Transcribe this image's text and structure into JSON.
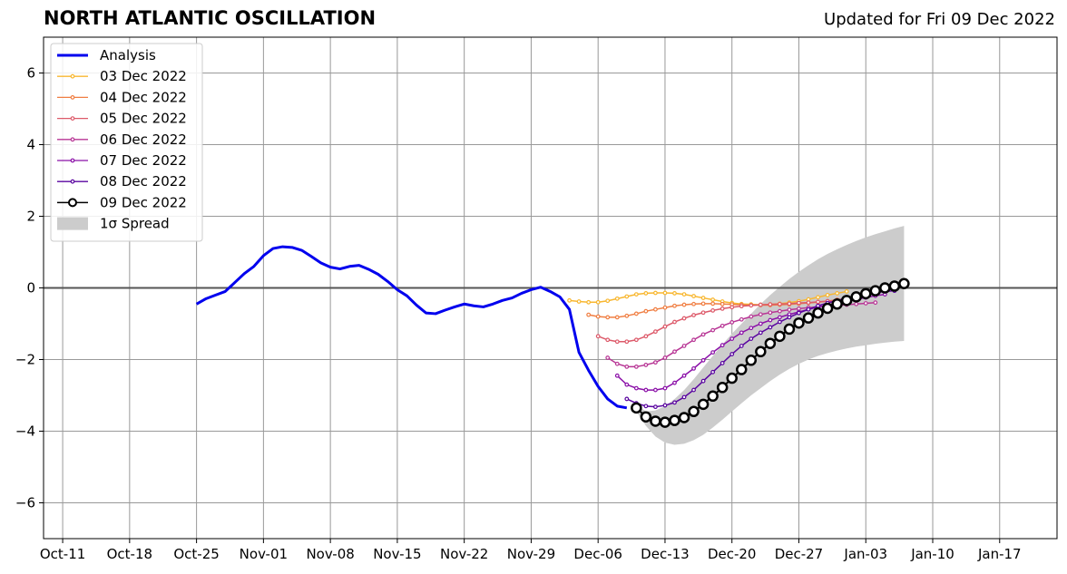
{
  "header": {
    "title": "NORTH ATLANTIC OSCILLATION",
    "updated": "Updated for Fri 09 Dec 2022"
  },
  "chart_data": {
    "type": "line",
    "title": "NORTH ATLANTIC OSCILLATION",
    "xlabel": "",
    "ylabel": "",
    "xlim": [
      "2022-10-09",
      "2023-01-23"
    ],
    "ylim": [
      -7,
      7
    ],
    "grid": true,
    "legend_position": "top-left",
    "x_ticks": [
      "Oct-11",
      "Oct-18",
      "Oct-25",
      "Nov-01",
      "Nov-08",
      "Nov-15",
      "Nov-22",
      "Nov-29",
      "Dec-06",
      "Dec-13",
      "Dec-20",
      "Dec-27",
      "Jan-03",
      "Jan-10",
      "Jan-17"
    ],
    "y_ticks": [
      -6,
      -4,
      -2,
      0,
      2,
      4,
      6
    ],
    "y_tick_labels": [
      "−6",
      "−4",
      "−2",
      "0",
      "2",
      "4",
      "6"
    ],
    "legend": [
      "Analysis",
      "03 Dec 2022",
      "04 Dec 2022",
      "05 Dec 2022",
      "06 Dec 2022",
      "07 Dec 2022",
      "08 Dec 2022",
      "09 Dec 2022",
      "1σ Spread"
    ],
    "colors": {
      "analysis": "#0000ee",
      "spread": "#cccccc",
      "grid": "#999999",
      "zero_line": "#555555",
      "forecast_09": "#000000"
    },
    "series": [
      {
        "name": "Analysis",
        "color": "#0000ee",
        "style": "thick-line",
        "x": [
          "2022-10-25",
          "2022-10-26",
          "2022-10-27",
          "2022-10-28",
          "2022-10-29",
          "2022-10-30",
          "2022-10-31",
          "2022-11-01",
          "2022-11-02",
          "2022-11-03",
          "2022-11-04",
          "2022-11-05",
          "2022-11-06",
          "2022-11-07",
          "2022-11-08",
          "2022-11-09",
          "2022-11-10",
          "2022-11-11",
          "2022-11-12",
          "2022-11-13",
          "2022-11-14",
          "2022-11-15",
          "2022-11-16",
          "2022-11-17",
          "2022-11-18",
          "2022-11-19",
          "2022-11-20",
          "2022-11-21",
          "2022-11-22",
          "2022-11-23",
          "2022-11-24",
          "2022-11-25",
          "2022-11-26",
          "2022-11-27",
          "2022-11-28",
          "2022-11-29",
          "2022-11-30",
          "2022-12-01",
          "2022-12-02",
          "2022-12-03",
          "2022-12-04",
          "2022-12-05",
          "2022-12-06",
          "2022-12-07",
          "2022-12-08",
          "2022-12-09"
        ],
        "y": [
          -0.45,
          -0.3,
          -0.2,
          -0.1,
          0.15,
          0.4,
          0.6,
          0.9,
          1.1,
          1.15,
          1.13,
          1.05,
          0.88,
          0.7,
          0.58,
          0.53,
          0.6,
          0.63,
          0.52,
          0.38,
          0.18,
          -0.05,
          -0.22,
          -0.48,
          -0.7,
          -0.72,
          -0.62,
          -0.53,
          -0.45,
          -0.5,
          -0.53,
          -0.45,
          -0.35,
          -0.28,
          -0.15,
          -0.05,
          0.02,
          -0.1,
          -0.25,
          -0.6,
          -1.8,
          -2.3,
          -2.75,
          -3.1,
          -3.3,
          -3.35
        ]
      },
      {
        "name": "03 Dec 2022",
        "color": "#f8b730",
        "x": [
          "2022-12-03",
          "2022-12-04",
          "2022-12-05",
          "2022-12-06",
          "2022-12-07",
          "2022-12-08",
          "2022-12-09",
          "2022-12-10",
          "2022-12-11",
          "2022-12-12",
          "2022-12-13",
          "2022-12-14",
          "2022-12-15",
          "2022-12-16",
          "2022-12-17",
          "2022-12-18",
          "2022-12-19",
          "2022-12-20",
          "2022-12-21",
          "2022-12-22",
          "2022-12-23",
          "2022-12-24",
          "2022-12-25",
          "2022-12-26",
          "2022-12-27",
          "2022-12-28",
          "2022-12-29",
          "2022-12-30",
          "2022-12-31",
          "2023-01-01"
        ],
        "y": [
          -0.35,
          -0.38,
          -0.4,
          -0.4,
          -0.36,
          -0.3,
          -0.24,
          -0.18,
          -0.15,
          -0.14,
          -0.14,
          -0.15,
          -0.18,
          -0.23,
          -0.28,
          -0.33,
          -0.38,
          -0.42,
          -0.45,
          -0.46,
          -0.47,
          -0.46,
          -0.44,
          -0.41,
          -0.37,
          -0.32,
          -0.26,
          -0.2,
          -0.15,
          -0.1
        ]
      },
      {
        "name": "04 Dec 2022",
        "color": "#f07e42",
        "x": [
          "2022-12-05",
          "2022-12-06",
          "2022-12-07",
          "2022-12-08",
          "2022-12-09",
          "2022-12-10",
          "2022-12-11",
          "2022-12-12",
          "2022-12-13",
          "2022-12-14",
          "2022-12-15",
          "2022-12-16",
          "2022-12-17",
          "2022-12-18",
          "2022-12-19",
          "2022-12-20",
          "2022-12-21",
          "2022-12-22",
          "2022-12-23",
          "2022-12-24",
          "2022-12-25",
          "2022-12-26",
          "2022-12-27",
          "2022-12-28",
          "2022-12-29",
          "2022-12-30",
          "2022-12-31",
          "2023-01-01",
          "2023-01-02"
        ],
        "y": [
          -0.75,
          -0.8,
          -0.82,
          -0.82,
          -0.78,
          -0.72,
          -0.65,
          -0.6,
          -0.55,
          -0.5,
          -0.47,
          -0.45,
          -0.44,
          -0.44,
          -0.45,
          -0.46,
          -0.47,
          -0.48,
          -0.48,
          -0.48,
          -0.47,
          -0.46,
          -0.44,
          -0.42,
          -0.4,
          -0.37,
          -0.33,
          -0.3,
          -0.26
        ]
      },
      {
        "name": "05 Dec 2022",
        "color": "#dd5a6a",
        "x": [
          "2022-12-06",
          "2022-12-07",
          "2022-12-08",
          "2022-12-09",
          "2022-12-10",
          "2022-12-11",
          "2022-12-12",
          "2022-12-13",
          "2022-12-14",
          "2022-12-15",
          "2022-12-16",
          "2022-12-17",
          "2022-12-18",
          "2022-12-19",
          "2022-12-20",
          "2022-12-21",
          "2022-12-22",
          "2022-12-23",
          "2022-12-24",
          "2022-12-25",
          "2022-12-26",
          "2022-12-27",
          "2022-12-28",
          "2022-12-29",
          "2022-12-30",
          "2022-12-31",
          "2023-01-01",
          "2023-01-02",
          "2023-01-03"
        ],
        "y": [
          -1.35,
          -1.45,
          -1.5,
          -1.5,
          -1.45,
          -1.35,
          -1.22,
          -1.08,
          -0.95,
          -0.85,
          -0.76,
          -0.69,
          -0.63,
          -0.58,
          -0.54,
          -0.51,
          -0.49,
          -0.47,
          -0.46,
          -0.45,
          -0.44,
          -0.42,
          -0.41,
          -0.39,
          -0.37,
          -0.35,
          -0.32,
          -0.29,
          -0.26
        ]
      },
      {
        "name": "06 Dec 2022",
        "color": "#b83695",
        "x": [
          "2022-12-07",
          "2022-12-08",
          "2022-12-09",
          "2022-12-10",
          "2022-12-11",
          "2022-12-12",
          "2022-12-13",
          "2022-12-14",
          "2022-12-15",
          "2022-12-16",
          "2022-12-17",
          "2022-12-18",
          "2022-12-19",
          "2022-12-20",
          "2022-12-21",
          "2022-12-22",
          "2022-12-23",
          "2022-12-24",
          "2022-12-25",
          "2022-12-26",
          "2022-12-27",
          "2022-12-28",
          "2022-12-29",
          "2022-12-30",
          "2022-12-31",
          "2023-01-01",
          "2023-01-02",
          "2023-01-03",
          "2023-01-04"
        ],
        "y": [
          -1.95,
          -2.12,
          -2.2,
          -2.2,
          -2.15,
          -2.08,
          -1.95,
          -1.78,
          -1.62,
          -1.45,
          -1.3,
          -1.18,
          -1.06,
          -0.96,
          -0.88,
          -0.8,
          -0.74,
          -0.69,
          -0.65,
          -0.61,
          -0.58,
          -0.55,
          -0.53,
          -0.51,
          -0.49,
          -0.47,
          -0.45,
          -0.43,
          -0.41
        ]
      },
      {
        "name": "07 Dec 2022",
        "color": "#8b10a8",
        "x": [
          "2022-12-08",
          "2022-12-09",
          "2022-12-10",
          "2022-12-11",
          "2022-12-12",
          "2022-12-13",
          "2022-12-14",
          "2022-12-15",
          "2022-12-16",
          "2022-12-17",
          "2022-12-18",
          "2022-12-19",
          "2022-12-20",
          "2022-12-21",
          "2022-12-22",
          "2022-12-23",
          "2022-12-24",
          "2022-12-25",
          "2022-12-26",
          "2022-12-27",
          "2022-12-28",
          "2022-12-29",
          "2022-12-30",
          "2022-12-31",
          "2023-01-01",
          "2023-01-02",
          "2023-01-03",
          "2023-01-04",
          "2023-01-05"
        ],
        "y": [
          -2.45,
          -2.7,
          -2.8,
          -2.85,
          -2.85,
          -2.8,
          -2.65,
          -2.45,
          -2.25,
          -2.02,
          -1.8,
          -1.6,
          -1.42,
          -1.25,
          -1.12,
          -1.0,
          -0.9,
          -0.82,
          -0.74,
          -0.67,
          -0.6,
          -0.54,
          -0.48,
          -0.42,
          -0.37,
          -0.32,
          -0.27,
          -0.22,
          -0.18
        ]
      },
      {
        "name": "08 Dec 2022",
        "color": "#5a05a0",
        "x": [
          "2022-12-09",
          "2022-12-10",
          "2022-12-11",
          "2022-12-12",
          "2022-12-13",
          "2022-12-14",
          "2022-12-15",
          "2022-12-16",
          "2022-12-17",
          "2022-12-18",
          "2022-12-19",
          "2022-12-20",
          "2022-12-21",
          "2022-12-22",
          "2022-12-23",
          "2022-12-24",
          "2022-12-25",
          "2022-12-26",
          "2022-12-27",
          "2022-12-28",
          "2022-12-29",
          "2022-12-30",
          "2022-12-31",
          "2023-01-01",
          "2023-01-02",
          "2023-01-03",
          "2023-01-04",
          "2023-01-05",
          "2023-01-06"
        ],
        "y": [
          -3.1,
          -3.22,
          -3.3,
          -3.32,
          -3.28,
          -3.2,
          -3.05,
          -2.85,
          -2.6,
          -2.35,
          -2.1,
          -1.85,
          -1.62,
          -1.42,
          -1.25,
          -1.1,
          -0.95,
          -0.82,
          -0.7,
          -0.6,
          -0.5,
          -0.42,
          -0.35,
          -0.28,
          -0.22,
          -0.17,
          -0.13,
          -0.1,
          -0.08
        ]
      },
      {
        "name": "09 Dec 2022",
        "color": "#000000",
        "style": "open-circles",
        "x": [
          "2022-12-10",
          "2022-12-11",
          "2022-12-12",
          "2022-12-13",
          "2022-12-14",
          "2022-12-15",
          "2022-12-16",
          "2022-12-17",
          "2022-12-18",
          "2022-12-19",
          "2022-12-20",
          "2022-12-21",
          "2022-12-22",
          "2022-12-23",
          "2022-12-24",
          "2022-12-25",
          "2022-12-26",
          "2022-12-27",
          "2022-12-28",
          "2022-12-29",
          "2022-12-30",
          "2022-12-31",
          "2023-01-01",
          "2023-01-02",
          "2023-01-03",
          "2023-01-04",
          "2023-01-05",
          "2023-01-06",
          "2023-01-07"
        ],
        "y": [
          -3.35,
          -3.6,
          -3.72,
          -3.75,
          -3.7,
          -3.62,
          -3.45,
          -3.25,
          -3.02,
          -2.78,
          -2.52,
          -2.28,
          -2.02,
          -1.78,
          -1.55,
          -1.35,
          -1.15,
          -0.98,
          -0.84,
          -0.7,
          -0.57,
          -0.45,
          -0.35,
          -0.25,
          -0.16,
          -0.08,
          0.0,
          0.05,
          0.12
        ]
      }
    ],
    "spread": {
      "name": "1σ Spread",
      "color": "#cccccc",
      "x": [
        "2022-12-10",
        "2022-12-11",
        "2022-12-12",
        "2022-12-13",
        "2022-12-14",
        "2022-12-15",
        "2022-12-16",
        "2022-12-17",
        "2022-12-18",
        "2022-12-19",
        "2022-12-20",
        "2022-12-21",
        "2022-12-22",
        "2022-12-23",
        "2022-12-24",
        "2022-12-25",
        "2022-12-26",
        "2022-12-27",
        "2022-12-28",
        "2022-12-29",
        "2022-12-30",
        "2022-12-31",
        "2023-01-01",
        "2023-01-02",
        "2023-01-03",
        "2023-01-04",
        "2023-01-05",
        "2023-01-06",
        "2023-01-07"
      ],
      "upper": [
        -3.25,
        -3.45,
        -3.42,
        -3.3,
        -3.1,
        -2.85,
        -2.55,
        -2.22,
        -1.9,
        -1.58,
        -1.28,
        -1.0,
        -0.72,
        -0.45,
        -0.2,
        0.03,
        0.25,
        0.45,
        0.63,
        0.8,
        0.95,
        1.08,
        1.2,
        1.31,
        1.41,
        1.5,
        1.58,
        1.66,
        1.73
      ],
      "lower": [
        -3.45,
        -3.85,
        -4.15,
        -4.32,
        -4.38,
        -4.35,
        -4.25,
        -4.1,
        -3.9,
        -3.68,
        -3.45,
        -3.22,
        -3.0,
        -2.8,
        -2.6,
        -2.42,
        -2.26,
        -2.12,
        -2.0,
        -1.9,
        -1.82,
        -1.75,
        -1.69,
        -1.64,
        -1.6,
        -1.56,
        -1.53,
        -1.5,
        -1.48
      ]
    }
  }
}
